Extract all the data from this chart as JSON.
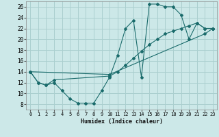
{
  "xlabel": "Humidex (Indice chaleur)",
  "bg_color": "#cce8e8",
  "line_color": "#1a6b6b",
  "grid_color": "#aacfcf",
  "xlim": [
    -0.5,
    23.5
  ],
  "ylim": [
    7,
    27
  ],
  "xticks": [
    0,
    1,
    2,
    3,
    4,
    5,
    6,
    7,
    8,
    9,
    10,
    11,
    12,
    13,
    14,
    15,
    16,
    17,
    18,
    19,
    20,
    21,
    22,
    23
  ],
  "yticks": [
    8,
    10,
    12,
    14,
    16,
    18,
    20,
    22,
    24,
    26
  ],
  "line1_x": [
    0,
    1,
    2,
    3,
    4,
    5,
    6,
    7,
    8,
    9,
    10,
    11,
    12,
    13,
    14,
    15,
    16,
    17,
    18,
    19,
    20,
    21,
    22,
    23
  ],
  "line1_y": [
    14,
    12,
    11.5,
    12,
    10.5,
    9.0,
    8.2,
    8.2,
    8.2,
    10.5,
    13,
    17,
    22,
    23.5,
    13,
    26.5,
    26.5,
    26,
    26,
    24.5,
    20,
    23,
    22,
    22
  ],
  "line2_x": [
    0,
    1,
    2,
    3,
    10,
    11,
    12,
    13,
    14,
    15,
    16,
    17,
    18,
    19,
    20,
    21,
    22,
    23
  ],
  "line2_y": [
    14,
    12,
    11.5,
    12.5,
    13.2,
    14,
    15.2,
    16.5,
    17.8,
    19,
    20,
    21,
    21.5,
    22,
    22.5,
    23,
    22,
    22
  ],
  "line3_x": [
    0,
    10,
    22,
    23
  ],
  "line3_y": [
    14,
    13.5,
    21,
    22
  ]
}
